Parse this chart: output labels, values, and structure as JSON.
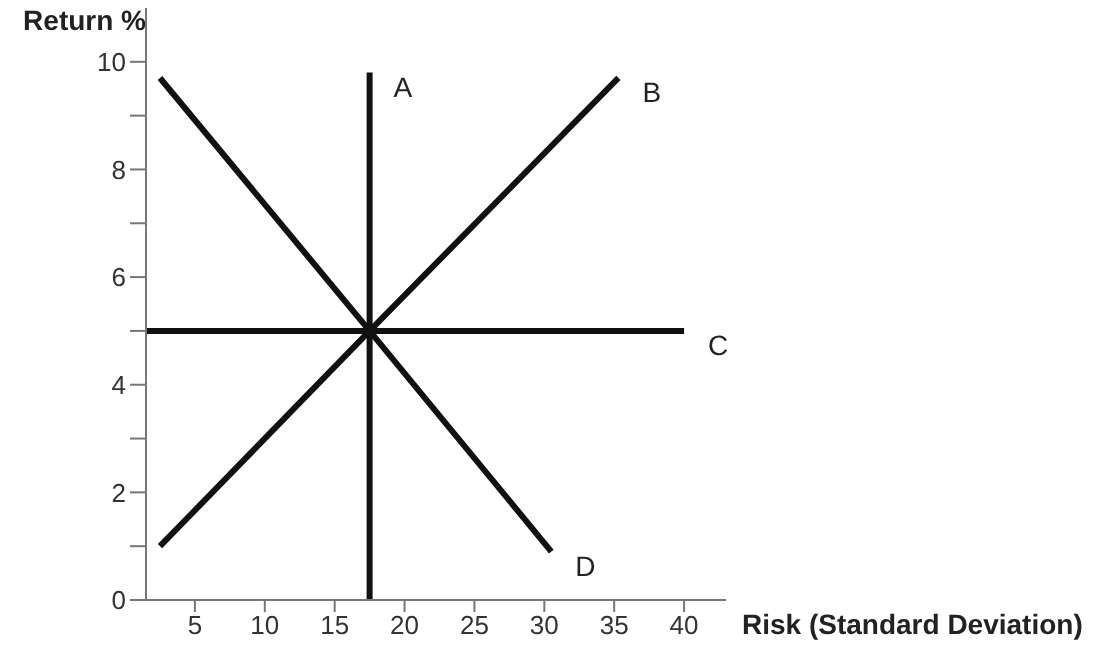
{
  "chart_data": {
    "type": "line",
    "xlabel": "Risk (Standard Deviation)",
    "ylabel": "Return %",
    "xlim": [
      1.5,
      43
    ],
    "xticks": [
      5,
      10,
      15,
      20,
      25,
      30,
      35,
      40
    ],
    "ylim": [
      0,
      11
    ],
    "yticks": [
      0,
      {
        "value": 1,
        "label": null
      },
      2,
      {
        "value": 3,
        "label": null
      },
      4,
      {
        "value": 5,
        "label": null
      },
      6,
      {
        "value": 7,
        "label": null
      },
      8,
      {
        "value": 9,
        "label": null
      },
      10
    ],
    "grid": false,
    "legend": false,
    "marker": "none",
    "line_style": "solid",
    "series": [
      {
        "name": "A",
        "color": "#111111",
        "x": [
          17.5,
          17.5
        ],
        "values": [
          0,
          9.8
        ]
      },
      {
        "name": "B",
        "color": "#111111",
        "x": [
          2.5,
          17.5,
          35.3
        ],
        "values": [
          1,
          5,
          9.7
        ]
      },
      {
        "name": "C",
        "color": "#111111",
        "x": [
          1.5,
          40
        ],
        "values": [
          5,
          5
        ]
      },
      {
        "name": "D",
        "color": "#111111",
        "x": [
          2.5,
          17.5,
          30.5
        ],
        "values": [
          9.7,
          5,
          0.9
        ]
      }
    ]
  }
}
